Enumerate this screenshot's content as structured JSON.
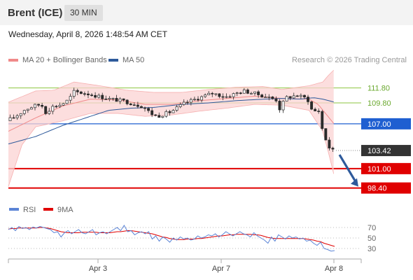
{
  "header": {
    "title": "Brent (ICE)",
    "timeframe": "30 MIN"
  },
  "timestamp": "Wednesday, April 8, 2026 1:48:54 AM CET",
  "legend": {
    "items": [
      {
        "label": "MA 20 + Bollinger Bands",
        "color": "#f08a8a"
      },
      {
        "label": "MA 50",
        "color": "#2e5a9b"
      }
    ],
    "credit": "Research © 2026 Trading Central"
  },
  "chart_data": [
    {
      "type": "candlestick",
      "title": "",
      "price_range": [
        97.8,
        114.3
      ],
      "x_ticks": [
        "Apr 3",
        "Apr 7",
        "Apr 8"
      ],
      "levels": [
        {
          "label": "111.80",
          "value": 111.8,
          "kind": "resistance",
          "color": "#8dc63f"
        },
        {
          "label": "109.80",
          "value": 109.8,
          "kind": "resistance",
          "color": "#8dc63f"
        },
        {
          "label": "107.00",
          "value": 107.0,
          "kind": "pivot",
          "color": "#1f5fd1"
        },
        {
          "label": "103.42",
          "value": 103.42,
          "kind": "last",
          "color": "#333333"
        },
        {
          "label": "101.00",
          "value": 101.0,
          "kind": "support",
          "color": "#e00000"
        },
        {
          "label": "98.40",
          "value": 98.4,
          "kind": "support",
          "color": "#e00000"
        }
      ],
      "forecast_arrow": {
        "from": 103.42,
        "to": 98.4,
        "color": "#2e5a9b"
      },
      "series": [
        {
          "name": "MA 20 + Bollinger Bands",
          "color": "#f08a8a"
        },
        {
          "name": "MA 50",
          "color": "#2e5a9b"
        }
      ],
      "price_path": [
        [
          0,
          107.4
        ],
        [
          10,
          108.0
        ],
        [
          20,
          108.9
        ],
        [
          30,
          109.4
        ],
        [
          38,
          109.6
        ],
        [
          44,
          108.3
        ],
        [
          48,
          109.2
        ],
        [
          60,
          109.6
        ],
        [
          68,
          110.2
        ],
        [
          74,
          111.3
        ],
        [
          90,
          111.0
        ],
        [
          110,
          110.4
        ],
        [
          130,
          110.0
        ],
        [
          150,
          109.3
        ],
        [
          158,
          108.4
        ],
        [
          165,
          108.0
        ],
        [
          180,
          108.6
        ],
        [
          196,
          109.8
        ],
        [
          212,
          110.5
        ],
        [
          226,
          111.1
        ],
        [
          240,
          110.6
        ],
        [
          260,
          111.4
        ],
        [
          274,
          111.0
        ],
        [
          286,
          110.6
        ],
        [
          296,
          110.2
        ],
        [
          300,
          108.9
        ],
        [
          306,
          110.5
        ],
        [
          318,
          110.8
        ],
        [
          330,
          110.4
        ],
        [
          336,
          108.5
        ],
        [
          342,
          109.0
        ],
        [
          346,
          106.5
        ],
        [
          350,
          105.0
        ],
        [
          352,
          104.2
        ],
        [
          356,
          103.5
        ],
        [
          358,
          103.42
        ]
      ],
      "ma20_path": [
        [
          0,
          106.0
        ],
        [
          30,
          107.8
        ],
        [
          60,
          109.4
        ],
        [
          90,
          110.3
        ],
        [
          120,
          110.2
        ],
        [
          150,
          109.6
        ],
        [
          180,
          109.6
        ],
        [
          210,
          110.1
        ],
        [
          240,
          110.4
        ],
        [
          270,
          110.7
        ],
        [
          300,
          110.4
        ],
        [
          330,
          110.3
        ],
        [
          340,
          109.6
        ],
        [
          350,
          108.1
        ],
        [
          358,
          106.9
        ]
      ],
      "bb_upper_path": [
        [
          0,
          109.9
        ],
        [
          30,
          111.4
        ],
        [
          50,
          111.5
        ],
        [
          72,
          112.6
        ],
        [
          100,
          112.1
        ],
        [
          130,
          111.5
        ],
        [
          160,
          111.2
        ],
        [
          190,
          111.2
        ],
        [
          220,
          111.6
        ],
        [
          250,
          111.9
        ],
        [
          280,
          112.0
        ],
        [
          300,
          111.6
        ],
        [
          330,
          112.1
        ],
        [
          345,
          112.6
        ],
        [
          352,
          113.6
        ],
        [
          358,
          114.3
        ]
      ],
      "bb_lower_path": [
        [
          0,
          98.6
        ],
        [
          15,
          104.2
        ],
        [
          30,
          106.6
        ],
        [
          60,
          107.4
        ],
        [
          90,
          108.4
        ],
        [
          120,
          108.4
        ],
        [
          150,
          108.0
        ],
        [
          180,
          108.2
        ],
        [
          210,
          108.7
        ],
        [
          240,
          109.1
        ],
        [
          270,
          109.6
        ],
        [
          300,
          109.5
        ],
        [
          330,
          108.8
        ],
        [
          345,
          106.0
        ],
        [
          352,
          102.8
        ],
        [
          358,
          99.8
        ]
      ],
      "ma50_path": [
        [
          0,
          104.3
        ],
        [
          30,
          105.3
        ],
        [
          60,
          106.8
        ],
        [
          90,
          108.0
        ],
        [
          110,
          108.8
        ],
        [
          135,
          109.1
        ],
        [
          160,
          109.2
        ],
        [
          190,
          109.6
        ],
        [
          220,
          109.8
        ],
        [
          250,
          110.1
        ],
        [
          280,
          110.3
        ],
        [
          300,
          110.4
        ],
        [
          320,
          110.3
        ],
        [
          335,
          110.5
        ],
        [
          345,
          110.3
        ],
        [
          358,
          109.9
        ]
      ]
    },
    {
      "type": "line",
      "title": "",
      "y_ticks": [
        "70",
        "50",
        "30"
      ],
      "y_range": [
        18,
        86
      ],
      "series": [
        {
          "name": "RSI",
          "color": "#5b84d6"
        },
        {
          "name": "9MA",
          "color": "#e00000"
        }
      ],
      "rsi_values": [
        66,
        70,
        64,
        72,
        68,
        70,
        66,
        71,
        69,
        72,
        70,
        68,
        66,
        60,
        62,
        52,
        60,
        64,
        58,
        62,
        66,
        60,
        58,
        62,
        66,
        56,
        60,
        62,
        58,
        62,
        66,
        70,
        64,
        74,
        62,
        64,
        56,
        60,
        62,
        58,
        62,
        48,
        54,
        44,
        52,
        48,
        42,
        50,
        46,
        52,
        48,
        50,
        46,
        48,
        54,
        50,
        52,
        56,
        54,
        58,
        52,
        56,
        62,
        58,
        54,
        58,
        62,
        58,
        56,
        52,
        60,
        54,
        50,
        46,
        40,
        52,
        44,
        56,
        52,
        48,
        54,
        50,
        52,
        48,
        50,
        44,
        46,
        40,
        36,
        42,
        30,
        28,
        25,
        26
      ],
      "ma9_values": [
        67,
        68,
        68,
        69,
        69,
        69,
        69,
        69,
        69,
        70,
        70,
        69,
        68,
        66,
        64,
        62,
        61,
        60,
        60,
        60,
        60,
        61,
        61,
        61,
        61,
        61,
        60,
        60,
        60,
        60,
        61,
        62,
        62,
        63,
        64,
        64,
        63,
        62,
        61,
        60,
        59,
        58,
        56,
        54,
        52,
        51,
        49,
        48,
        47,
        47,
        47,
        48,
        48,
        48,
        49,
        49,
        50,
        51,
        52,
        53,
        54,
        54,
        55,
        56,
        56,
        57,
        57,
        57,
        57,
        57,
        56,
        56,
        55,
        53,
        51,
        50,
        49,
        49,
        49,
        49,
        49,
        49,
        49,
        49,
        49,
        48,
        47,
        46,
        44,
        43,
        40,
        38,
        36,
        34
      ]
    }
  ]
}
